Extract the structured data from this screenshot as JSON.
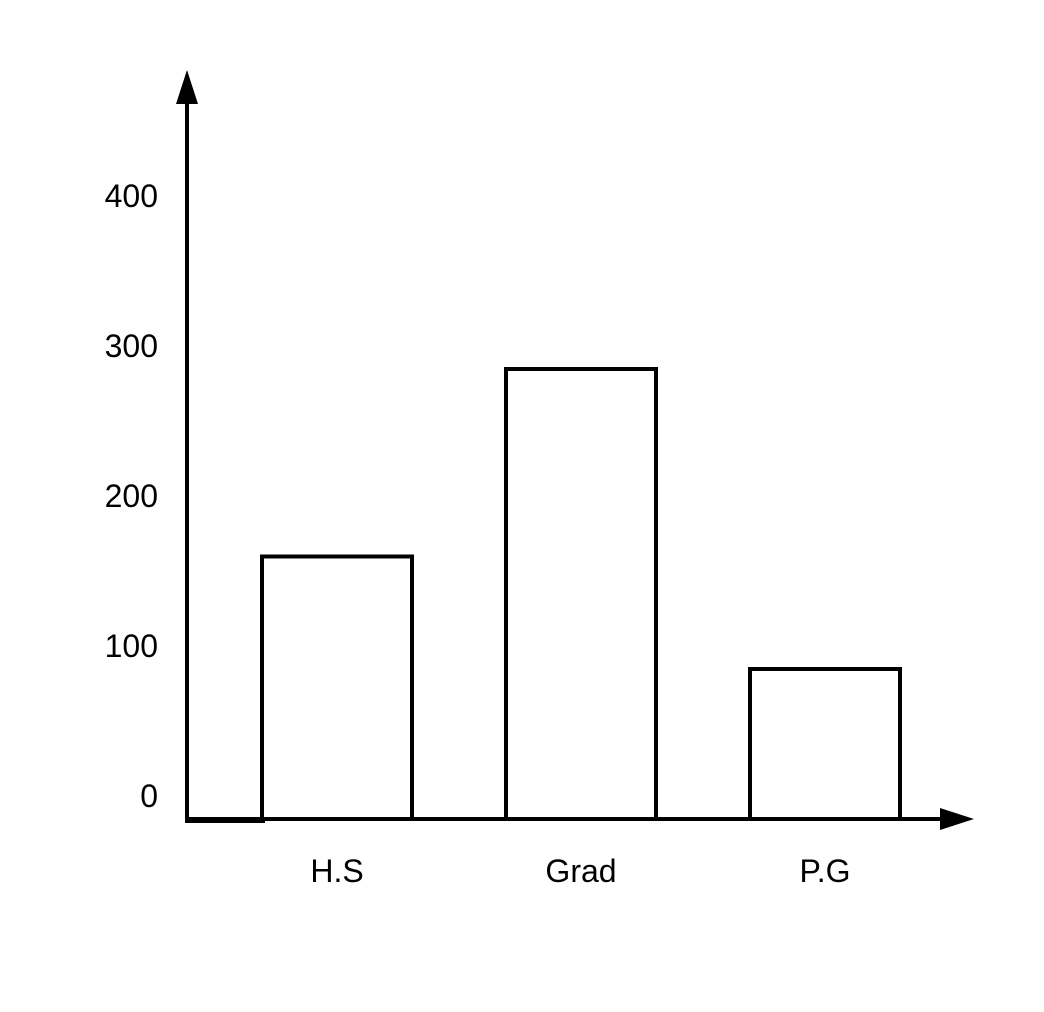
{
  "chart_data": {
    "type": "bar",
    "title": "",
    "xlabel": "",
    "ylabel": "",
    "categories": [
      "H.S",
      "Grad",
      "P.G"
    ],
    "values": [
      175,
      300,
      100
    ],
    "ylim": [
      0,
      400
    ],
    "yticks": [
      "0",
      "100",
      "200",
      "300",
      "400"
    ],
    "grid": false,
    "legend": "none",
    "bar_fill": "#ffffff",
    "bar_stroke": "#000000",
    "axis_color": "#000000"
  }
}
